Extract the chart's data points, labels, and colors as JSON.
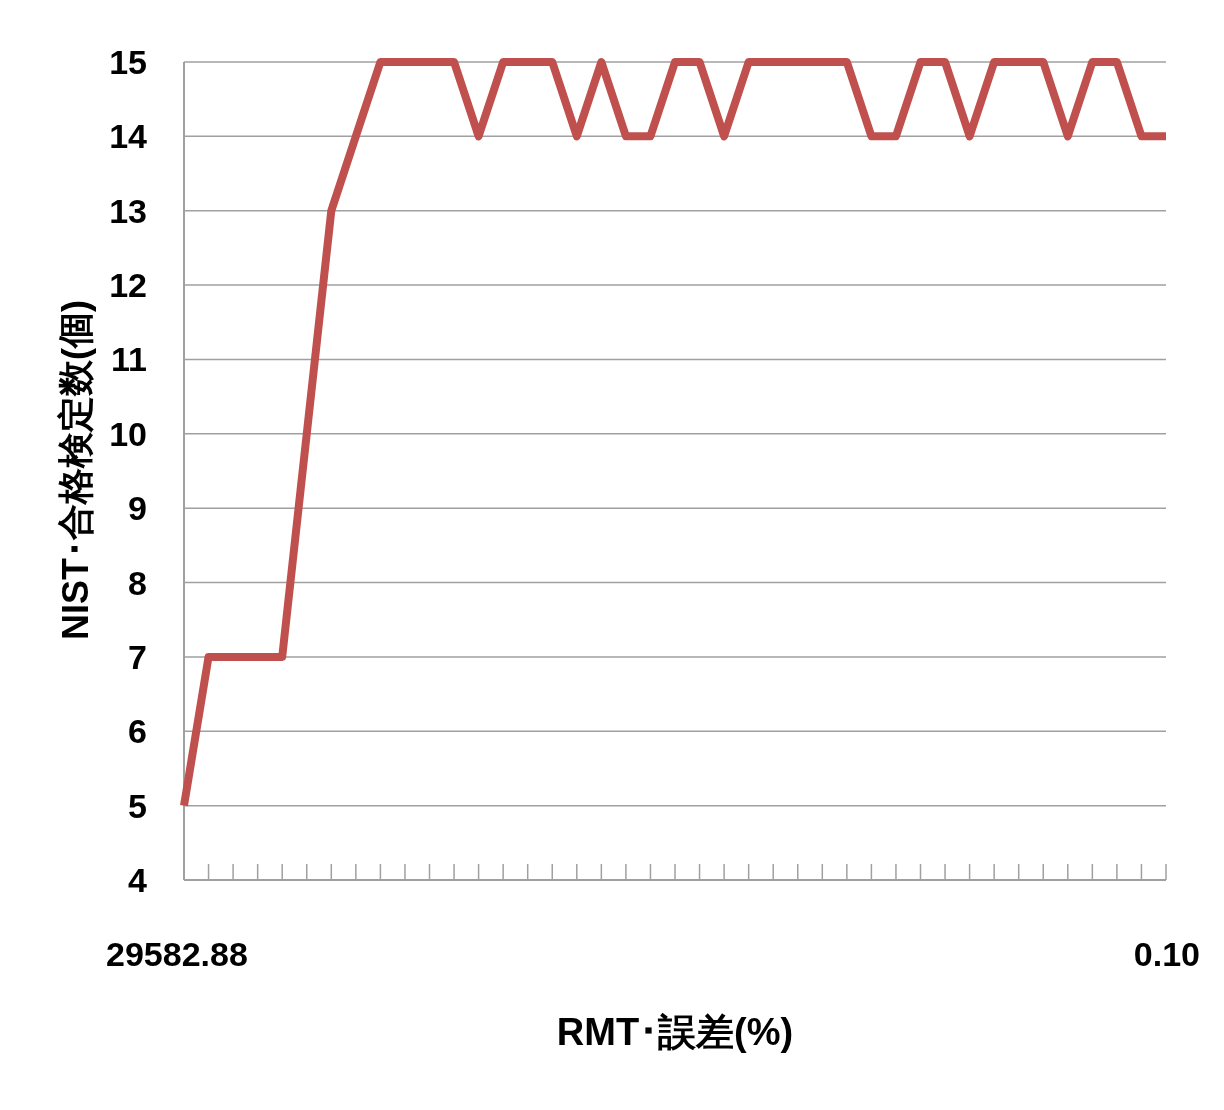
{
  "chart_data": {
    "type": "line",
    "xlabel": "RMT･誤差(%)",
    "ylabel": "NIST･合格検定数(個)",
    "categories": [
      "29582.88",
      null,
      null,
      null,
      null,
      null,
      null,
      null,
      null,
      null,
      null,
      null,
      null,
      null,
      null,
      null,
      null,
      null,
      null,
      null,
      null,
      null,
      null,
      null,
      null,
      null,
      null,
      null,
      null,
      null,
      null,
      null,
      null,
      null,
      null,
      null,
      null,
      null,
      null,
      null,
      "0.10"
    ],
    "series": [
      {
        "color": "#c0504d",
        "values": [
          5,
          7,
          7,
          7,
          7,
          10,
          13,
          14,
          15,
          15,
          15,
          15,
          14,
          15,
          15,
          15,
          14,
          15,
          14,
          14,
          15,
          15,
          14,
          15,
          15,
          15,
          15,
          15,
          14,
          14,
          15,
          15,
          14,
          15,
          15,
          15,
          14,
          15,
          15,
          14,
          14
        ]
      }
    ],
    "ylim": [
      4,
      15
    ],
    "yticks": [
      4,
      5,
      6,
      7,
      8,
      9,
      10,
      11,
      12,
      13,
      14,
      15
    ],
    "grid": "y",
    "marker": "none",
    "line_style": "solid"
  }
}
